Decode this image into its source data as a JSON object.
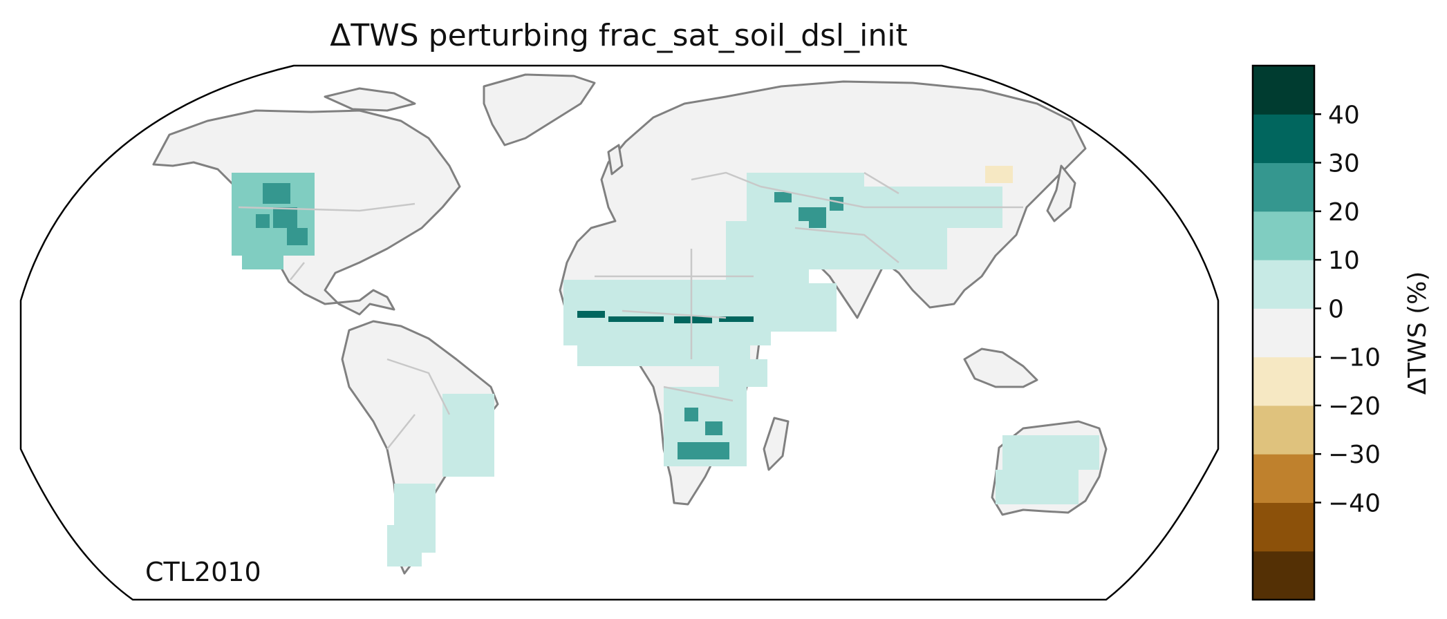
{
  "title": "ΔTWS perturbing frac_sat_soil_dsl_init",
  "run_label": "CTL2010",
  "colorbar": {
    "label": "ΔTWS (%)",
    "ticks": [
      "40",
      "30",
      "20",
      "10",
      "0",
      "−10",
      "−20",
      "−30",
      "−40"
    ],
    "bins": [
      {
        "range": [
          -50,
          -40
        ],
        "color": "#543005"
      },
      {
        "range": [
          -40,
          -30
        ],
        "color": "#8c510a"
      },
      {
        "range": [
          -30,
          -20
        ],
        "color": "#bf812d"
      },
      {
        "range": [
          -20,
          -10
        ],
        "color": "#dfc27d"
      },
      {
        "range": [
          -10,
          -5
        ],
        "color": "#f6e8c3"
      },
      {
        "range": [
          -5,
          5
        ],
        "color": "#f2f2f2"
      },
      {
        "range": [
          5,
          10
        ],
        "color": "#c7eae5"
      },
      {
        "range": [
          10,
          20
        ],
        "color": "#80cdc1"
      },
      {
        "range": [
          20,
          30
        ],
        "color": "#35978f"
      },
      {
        "range": [
          30,
          40
        ],
        "color": "#01665e"
      },
      {
        "range": [
          40,
          50
        ],
        "color": "#003c30"
      }
    ]
  },
  "chart_data": {
    "type": "heatmap",
    "projection": "Robinson",
    "variable": "ΔTWS (%)",
    "vmin": -45,
    "vmax": 45,
    "land_color": "#f2f2f2",
    "coastline_color": "#808080",
    "border_color": "#c8c8c8",
    "highlight_regions": [
      {
        "region": "Western United States",
        "value": 15
      },
      {
        "region": "Western United States (core)",
        "value": 25
      },
      {
        "region": "Sahel",
        "value": 8
      },
      {
        "region": "Sahel (core band)",
        "value": 35
      },
      {
        "region": "Central Asia",
        "value": 8
      },
      {
        "region": "Caspian / Turkmenistan",
        "value": 25
      },
      {
        "region": "Middle East",
        "value": 8
      },
      {
        "region": "Southern Africa",
        "value": 8
      },
      {
        "region": "Botswana / Kalahari",
        "value": 25
      },
      {
        "region": "Northeast Brazil",
        "value": 8
      },
      {
        "region": "Northern Australia",
        "value": 8
      },
      {
        "region": "Patagonia",
        "value": 8
      },
      {
        "region": "Northeast China",
        "value": -7
      }
    ]
  }
}
